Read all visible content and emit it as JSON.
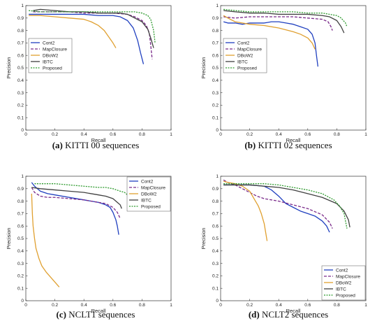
{
  "series_styles": {
    "Cont2": {
      "color": "#1f3fbf",
      "dash": ""
    },
    "MapClosure": {
      "color": "#7a2a8a",
      "dash": "4,2"
    },
    "DBoW2": {
      "color": "#e0a030",
      "dash": ""
    },
    "IBTC": {
      "color": "#404040",
      "dash": ""
    },
    "Proposed": {
      "color": "#2e9a2e",
      "dash": "2,1.5"
    }
  },
  "chart_data": [
    {
      "type": "line",
      "caption_label": "(a)",
      "caption_text": "KITTI 00 sequences",
      "xlabel": "Recall",
      "ylabel": "Precision",
      "xlim": [
        0,
        1
      ],
      "ylim": [
        0,
        1
      ],
      "xticks": [
        "0",
        "0.2",
        "0.4",
        "0.6",
        "0.8",
        "1"
      ],
      "yticks": [
        "0",
        "0.1",
        "0.2",
        "0.3",
        "0.4",
        "0.5",
        "0.6",
        "0.7",
        "0.8",
        "0.9",
        "1"
      ],
      "legend_position": "upper-left",
      "series": [
        {
          "name": "Cont2",
          "x": [
            0.02,
            0.1,
            0.2,
            0.3,
            0.4,
            0.5,
            0.6,
            0.65,
            0.7,
            0.74,
            0.77,
            0.79,
            0.81
          ],
          "y": [
            0.93,
            0.93,
            0.93,
            0.93,
            0.93,
            0.92,
            0.92,
            0.91,
            0.88,
            0.82,
            0.72,
            0.62,
            0.53
          ]
        },
        {
          "name": "MapClosure",
          "x": [
            0.05,
            0.1,
            0.2,
            0.3,
            0.4,
            0.5,
            0.6,
            0.7,
            0.75,
            0.8,
            0.83,
            0.85,
            0.86,
            0.87
          ],
          "y": [
            0.95,
            0.95,
            0.95,
            0.95,
            0.94,
            0.94,
            0.94,
            0.93,
            0.91,
            0.88,
            0.84,
            0.78,
            0.68,
            0.57
          ]
        },
        {
          "name": "DBoW2",
          "x": [
            0.02,
            0.1,
            0.2,
            0.3,
            0.4,
            0.45,
            0.5,
            0.54,
            0.57,
            0.6,
            0.62
          ],
          "y": [
            0.92,
            0.92,
            0.91,
            0.9,
            0.89,
            0.87,
            0.84,
            0.8,
            0.75,
            0.7,
            0.66
          ]
        },
        {
          "name": "IBTC",
          "x": [
            0.05,
            0.1,
            0.2,
            0.3,
            0.4,
            0.5,
            0.6,
            0.65,
            0.7,
            0.75,
            0.8,
            0.84,
            0.86,
            0.88
          ],
          "y": [
            0.96,
            0.97,
            0.96,
            0.95,
            0.95,
            0.94,
            0.94,
            0.94,
            0.93,
            0.9,
            0.87,
            0.81,
            0.74,
            0.66
          ]
        },
        {
          "name": "Proposed",
          "x": [
            0.02,
            0.1,
            0.2,
            0.3,
            0.4,
            0.5,
            0.6,
            0.7,
            0.75,
            0.8,
            0.84,
            0.86,
            0.88,
            0.89
          ],
          "y": [
            0.96,
            0.95,
            0.95,
            0.95,
            0.95,
            0.95,
            0.95,
            0.95,
            0.95,
            0.94,
            0.92,
            0.89,
            0.8,
            0.7
          ]
        }
      ]
    },
    {
      "type": "line",
      "caption_label": "(b)",
      "caption_text": "KITTI 02 sequences",
      "xlabel": "Recall",
      "ylabel": "Precision",
      "xlim": [
        0,
        1
      ],
      "ylim": [
        0,
        1
      ],
      "xticks": [
        "0",
        "0.2",
        "0.4",
        "0.6",
        "0.8",
        "1"
      ],
      "yticks": [
        "0",
        "0.1",
        "0.2",
        "0.3",
        "0.4",
        "0.5",
        "0.6",
        "0.7",
        "0.8",
        "0.9",
        "1"
      ],
      "legend_position": "upper-left",
      "series": [
        {
          "name": "Cont2",
          "x": [
            0.02,
            0.05,
            0.1,
            0.15,
            0.2,
            0.25,
            0.3,
            0.35,
            0.4,
            0.45,
            0.5,
            0.55,
            0.6,
            0.63,
            0.65,
            0.66,
            0.67
          ],
          "y": [
            0.87,
            0.86,
            0.86,
            0.85,
            0.86,
            0.86,
            0.86,
            0.87,
            0.87,
            0.86,
            0.85,
            0.83,
            0.81,
            0.77,
            0.7,
            0.6,
            0.51
          ]
        },
        {
          "name": "MapClosure",
          "x": [
            0.02,
            0.1,
            0.2,
            0.3,
            0.4,
            0.5,
            0.6,
            0.7,
            0.74,
            0.76,
            0.77
          ],
          "y": [
            0.91,
            0.9,
            0.91,
            0.91,
            0.91,
            0.91,
            0.9,
            0.89,
            0.87,
            0.83,
            0.8
          ]
        },
        {
          "name": "DBoW2",
          "x": [
            0.02,
            0.05,
            0.1,
            0.2,
            0.3,
            0.4,
            0.5,
            0.55,
            0.6,
            0.63,
            0.65
          ],
          "y": [
            0.92,
            0.9,
            0.87,
            0.85,
            0.84,
            0.82,
            0.79,
            0.77,
            0.74,
            0.7,
            0.65
          ]
        },
        {
          "name": "IBTC",
          "x": [
            0.02,
            0.1,
            0.2,
            0.3,
            0.4,
            0.5,
            0.6,
            0.7,
            0.75,
            0.8,
            0.83,
            0.85
          ],
          "y": [
            0.96,
            0.95,
            0.94,
            0.94,
            0.93,
            0.93,
            0.93,
            0.92,
            0.91,
            0.88,
            0.83,
            0.78
          ]
        },
        {
          "name": "Proposed",
          "x": [
            0.02,
            0.1,
            0.2,
            0.3,
            0.4,
            0.5,
            0.6,
            0.7,
            0.75,
            0.8,
            0.83,
            0.86,
            0.87
          ],
          "y": [
            0.97,
            0.96,
            0.95,
            0.95,
            0.95,
            0.95,
            0.94,
            0.94,
            0.93,
            0.92,
            0.9,
            0.86,
            0.83
          ]
        }
      ]
    },
    {
      "type": "line",
      "caption_label": "(c)",
      "caption_text": "NCLT1 sequences",
      "xlabel": "Recall",
      "ylabel": "Precision",
      "xlim": [
        0,
        1
      ],
      "ylim": [
        0,
        1
      ],
      "xticks": [
        "0",
        "0.2",
        "0.4",
        "0.6",
        "0.8",
        "1"
      ],
      "yticks": [
        "0",
        "0.1",
        "0.2",
        "0.3",
        "0.4",
        "0.5",
        "0.6",
        "0.7",
        "0.8",
        "0.9",
        "1"
      ],
      "legend_position": "upper-right",
      "series": [
        {
          "name": "Cont2",
          "x": [
            0.04,
            0.06,
            0.1,
            0.15,
            0.2,
            0.3,
            0.4,
            0.5,
            0.55,
            0.58,
            0.6,
            0.62,
            0.63,
            0.64
          ],
          "y": [
            0.95,
            0.92,
            0.88,
            0.86,
            0.85,
            0.83,
            0.81,
            0.79,
            0.77,
            0.75,
            0.71,
            0.65,
            0.6,
            0.53
          ]
        },
        {
          "name": "MapClosure",
          "x": [
            0.04,
            0.06,
            0.1,
            0.15,
            0.2,
            0.3,
            0.4,
            0.5,
            0.55,
            0.6,
            0.63,
            0.65
          ],
          "y": [
            0.91,
            0.87,
            0.84,
            0.83,
            0.83,
            0.82,
            0.81,
            0.79,
            0.78,
            0.75,
            0.71,
            0.66
          ]
        },
        {
          "name": "DBoW2",
          "x": [
            0.04,
            0.045,
            0.05,
            0.06,
            0.07,
            0.09,
            0.11,
            0.14,
            0.17,
            0.2,
            0.23
          ],
          "y": [
            0.86,
            0.7,
            0.6,
            0.5,
            0.42,
            0.34,
            0.28,
            0.23,
            0.19,
            0.15,
            0.11
          ]
        },
        {
          "name": "IBTC",
          "x": [
            0.04,
            0.1,
            0.2,
            0.3,
            0.4,
            0.5,
            0.55,
            0.6,
            0.63,
            0.65,
            0.66
          ],
          "y": [
            0.91,
            0.9,
            0.89,
            0.88,
            0.87,
            0.85,
            0.84,
            0.82,
            0.79,
            0.77,
            0.74
          ]
        },
        {
          "name": "Proposed",
          "x": [
            0.06,
            0.1,
            0.2,
            0.3,
            0.4,
            0.5,
            0.55,
            0.6,
            0.65,
            0.68,
            0.7
          ],
          "y": [
            0.94,
            0.94,
            0.94,
            0.93,
            0.92,
            0.91,
            0.91,
            0.9,
            0.88,
            0.87,
            0.85
          ]
        }
      ]
    },
    {
      "type": "line",
      "caption_label": "(d)",
      "caption_text": "NCLT2 sequences",
      "xlabel": "Recall",
      "ylabel": "Precision",
      "xlim": [
        0,
        1
      ],
      "ylim": [
        0,
        1
      ],
      "xticks": [
        "0",
        "0.2",
        "0.4",
        "0.6",
        "0.8",
        "1"
      ],
      "yticks": [
        "0",
        "0.1",
        "0.2",
        "0.3",
        "0.4",
        "0.5",
        "0.6",
        "0.7",
        "0.8",
        "0.9",
        "1"
      ],
      "legend_position": "lower-right",
      "series": [
        {
          "name": "Cont2",
          "x": [
            0.02,
            0.1,
            0.2,
            0.3,
            0.35,
            0.4,
            0.45,
            0.5,
            0.55,
            0.6,
            0.65,
            0.7,
            0.73,
            0.75
          ],
          "y": [
            0.93,
            0.93,
            0.93,
            0.92,
            0.89,
            0.84,
            0.78,
            0.75,
            0.72,
            0.7,
            0.68,
            0.64,
            0.6,
            0.55
          ]
        },
        {
          "name": "MapClosure",
          "x": [
            0.02,
            0.05,
            0.1,
            0.15,
            0.2,
            0.25,
            0.3,
            0.35,
            0.4,
            0.5,
            0.6,
            0.7,
            0.75,
            0.77
          ],
          "y": [
            0.97,
            0.95,
            0.93,
            0.9,
            0.87,
            0.84,
            0.82,
            0.81,
            0.8,
            0.77,
            0.74,
            0.69,
            0.63,
            0.58
          ]
        },
        {
          "name": "DBoW2",
          "x": [
            0.02,
            0.05,
            0.1,
            0.15,
            0.2,
            0.23,
            0.26,
            0.28,
            0.3,
            0.31,
            0.32
          ],
          "y": [
            0.96,
            0.95,
            0.94,
            0.92,
            0.88,
            0.82,
            0.76,
            0.7,
            0.62,
            0.55,
            0.48
          ]
        },
        {
          "name": "IBTC",
          "x": [
            0.02,
            0.1,
            0.2,
            0.3,
            0.4,
            0.5,
            0.6,
            0.7,
            0.8,
            0.85,
            0.88,
            0.89
          ],
          "y": [
            0.93,
            0.93,
            0.93,
            0.92,
            0.91,
            0.89,
            0.86,
            0.83,
            0.78,
            0.72,
            0.65,
            0.59
          ]
        },
        {
          "name": "Proposed",
          "x": [
            0.02,
            0.1,
            0.2,
            0.3,
            0.4,
            0.5,
            0.6,
            0.7,
            0.78,
            0.82,
            0.85,
            0.86,
            0.87
          ],
          "y": [
            0.94,
            0.94,
            0.94,
            0.94,
            0.93,
            0.91,
            0.89,
            0.86,
            0.81,
            0.76,
            0.7,
            0.64,
            0.58
          ]
        }
      ]
    }
  ]
}
